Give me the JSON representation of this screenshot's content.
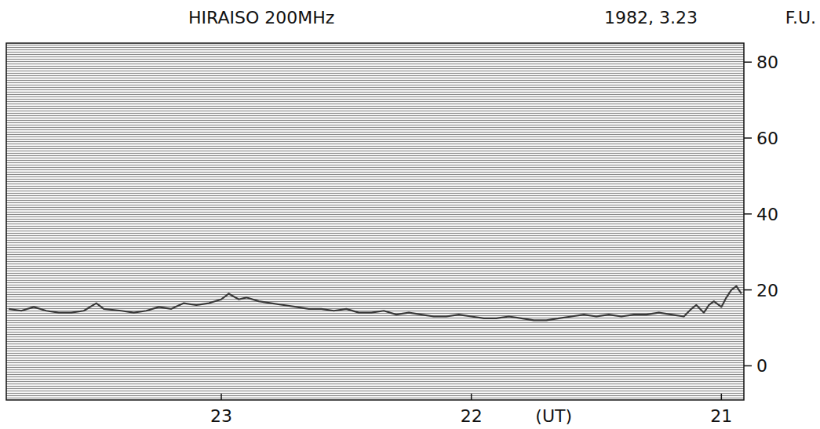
{
  "chart_data": {
    "type": "line",
    "title": "HIRAISO 200MHz",
    "subtitle": "1982, 3.23",
    "y_label": "F.U.",
    "x_label": "(UT)",
    "xlim": [
      23.86,
      20.91
    ],
    "xticks": [
      23,
      22,
      21
    ],
    "ylim": [
      -9,
      85
    ],
    "yticks": [
      0,
      20,
      40,
      60,
      80
    ],
    "series": [
      {
        "name": "200MHz",
        "color": "#3a3a3a",
        "x": [
          23.85,
          23.8,
          23.75,
          23.7,
          23.65,
          23.6,
          23.55,
          23.5,
          23.47,
          23.4,
          23.35,
          23.3,
          23.25,
          23.2,
          23.15,
          23.1,
          23.05,
          23.0,
          22.97,
          22.93,
          22.9,
          22.85,
          22.8,
          22.75,
          22.7,
          22.65,
          22.6,
          22.55,
          22.5,
          22.45,
          22.4,
          22.35,
          22.3,
          22.25,
          22.2,
          22.15,
          22.1,
          22.05,
          22.0,
          21.95,
          21.9,
          21.85,
          21.8,
          21.75,
          21.7,
          21.65,
          21.6,
          21.55,
          21.5,
          21.45,
          21.4,
          21.35,
          21.3,
          21.25,
          21.2,
          21.15,
          21.12,
          21.1,
          21.07,
          21.05,
          21.03,
          21.0,
          20.98,
          20.96,
          20.94,
          20.92
        ],
        "values": [
          15,
          14.5,
          15.5,
          14.5,
          14,
          14,
          14.5,
          16.5,
          15,
          14.5,
          14,
          14.5,
          15.5,
          15,
          16.5,
          16,
          16.5,
          17.5,
          19,
          17.5,
          18,
          17,
          16.5,
          16,
          15.5,
          15,
          15,
          14.5,
          15,
          14,
          14,
          14.5,
          13.5,
          14,
          13.5,
          13,
          13,
          13.5,
          13,
          12.5,
          12.5,
          13,
          12.5,
          12,
          12,
          12.5,
          13,
          13.5,
          13,
          13.5,
          13,
          13.5,
          13.5,
          14,
          13.5,
          13,
          15,
          16,
          14,
          16,
          17,
          15.5,
          18,
          20,
          21,
          19
        ]
      }
    ]
  }
}
